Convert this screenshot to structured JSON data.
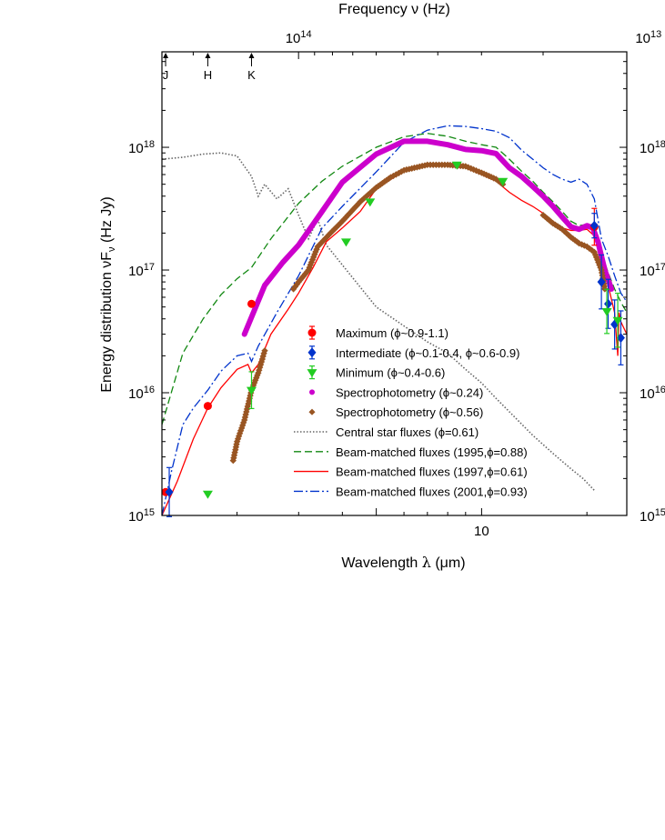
{
  "chart_data": {
    "type": "scatter",
    "title": "",
    "xlabel": "Wavelength λ (μm)",
    "ylabel": "Energy distribution νF_ν (Hz Jy)",
    "top_xlabel": "Frequency ν (Hz)",
    "x_scale": "log",
    "y_scale": "log",
    "xlim": [
      1.22,
      26.0
    ],
    "ylim": [
      1000000000000000.0,
      6e+18
    ],
    "x_ticks": [
      {
        "value": 10,
        "label": "10"
      }
    ],
    "y_ticks": [
      {
        "value": 1000000000000000.0,
        "base": "10",
        "exp": "15"
      },
      {
        "value": 1e+16,
        "base": "10",
        "exp": "16"
      },
      {
        "value": 1e+17,
        "base": "10",
        "exp": "17"
      },
      {
        "value": 1e+18,
        "base": "10",
        "exp": "18"
      }
    ],
    "top_ticks": [
      {
        "value_um": 2.998,
        "base": "10",
        "exp": "14"
      },
      {
        "value_um": 29.98,
        "base": "10",
        "exp": "13"
      }
    ],
    "bands": [
      {
        "label": "J",
        "x": 1.25
      },
      {
        "label": "H",
        "x": 1.65
      },
      {
        "label": "K",
        "x": 2.2
      }
    ],
    "legend_position": "center-right",
    "series": [
      {
        "name": "Maximum (ϕ~0.9-1.1)",
        "kind": "points",
        "marker": "circle",
        "color": "#ff0000",
        "points": [
          [
            1.25,
            1550000000000000.0
          ],
          [
            1.65,
            7800000000000000.0
          ],
          [
            2.2,
            5.3e+16
          ],
          [
            21.0,
            2.25e+17
          ]
        ],
        "errors": [
          0,
          0,
          0,
          0.15
        ]
      },
      {
        "name": "Intermediate (ϕ~0.1-0.4, ϕ~0.6-0.9)",
        "kind": "points",
        "marker": "diamond",
        "color": "#0033cc",
        "points": [
          [
            1.28,
            1550000000000000.0
          ],
          [
            21.0,
            2.3e+17
          ],
          [
            22.0,
            8e+16
          ],
          [
            23.0,
            5.3e+16
          ],
          [
            24.0,
            3.6e+16
          ],
          [
            25.0,
            2.8e+16
          ]
        ],
        "errors": [
          0.2,
          0.1,
          0.22,
          0.2,
          0.2,
          0.22
        ]
      },
      {
        "name": "Minimum (ϕ~0.4-0.6)",
        "kind": "points",
        "marker": "triangle-down",
        "color": "#22cc22",
        "points": [
          [
            1.65,
            1500000000000000.0
          ],
          [
            2.2,
            1.05e+16
          ],
          [
            4.1,
            1.7e+17
          ],
          [
            4.8,
            3.6e+17
          ],
          [
            8.5,
            7.2e+17
          ],
          [
            11.5,
            5.3e+17
          ],
          [
            22.8,
            4.6e+16
          ],
          [
            24.5,
            3.9e+16
          ]
        ],
        "errors": [
          0,
          0.15,
          0,
          0,
          0,
          0,
          0.18,
          0.22
        ]
      },
      {
        "name": "Spectrophotometry (ϕ~0.24)",
        "kind": "dotline",
        "color": "#cc00cc",
        "points": [
          [
            2.1,
            3e+16
          ],
          [
            2.4,
            7.5e+16
          ],
          [
            2.7,
            1.15e+17
          ],
          [
            3.0,
            1.6e+17
          ],
          [
            3.5,
            3e+17
          ],
          [
            4.0,
            5.2e+17
          ],
          [
            5.0,
            8.8e+17
          ],
          [
            6.0,
            1.12e+18
          ],
          [
            7.0,
            1.12e+18
          ],
          [
            8.0,
            1.05e+18
          ],
          [
            9.0,
            9.6e+17
          ],
          [
            10.0,
            9.4e+17
          ],
          [
            11.0,
            8.9e+17
          ],
          [
            12.0,
            6.8e+17
          ],
          [
            13.0,
            5.8e+17
          ],
          [
            14.0,
            4.8e+17
          ],
          [
            15.0,
            4e+17
          ],
          [
            16.0,
            3.3e+17
          ],
          [
            17.0,
            2.7e+17
          ],
          [
            18.0,
            2.25e+17
          ],
          [
            19.0,
            2.15e+17
          ],
          [
            20.0,
            2.3e+17
          ],
          [
            20.8,
            2.2e+17
          ],
          [
            21.5,
            1.7e+17
          ],
          [
            22.5,
            1e+17
          ],
          [
            23.5,
            7e+16
          ]
        ]
      },
      {
        "name": "Spectrophotometry (ϕ~0.56)",
        "kind": "dotline",
        "color": "#995522",
        "points": [
          [
            1.95,
            2800000000000000.0
          ],
          [
            2.0,
            4000000000000000.0
          ],
          [
            2.1,
            6000000000000000.0
          ],
          [
            2.2,
            1.05e+16
          ],
          [
            2.3,
            1.45e+16
          ],
          [
            2.4,
            2.2e+16
          ]
        ],
        "points2": [
          [
            2.9,
            7e+16
          ],
          [
            3.0,
            8e+16
          ],
          [
            3.2,
            1e+17
          ],
          [
            3.4,
            1.55e+17
          ],
          [
            3.7,
            2e+17
          ],
          [
            4.0,
            2.5e+17
          ],
          [
            4.5,
            3.6e+17
          ],
          [
            5.0,
            4.7e+17
          ],
          [
            5.5,
            5.7e+17
          ],
          [
            6.0,
            6.5e+17
          ],
          [
            7.0,
            7.2e+17
          ],
          [
            8.0,
            7.2e+17
          ],
          [
            9.0,
            7e+17
          ],
          [
            10.0,
            6.2e+17
          ],
          [
            11.0,
            5.5e+17
          ],
          [
            11.5,
            5e+17
          ]
        ],
        "points3": [
          [
            15.0,
            2.8e+17
          ],
          [
            16.0,
            2.4e+17
          ],
          [
            17.0,
            2.15e+17
          ],
          [
            18.0,
            1.85e+17
          ],
          [
            19.0,
            1.65e+17
          ],
          [
            20.0,
            1.55e+17
          ],
          [
            21.0,
            1.4e+17
          ],
          [
            22.0,
            1e+17
          ],
          [
            22.5,
            7e+16
          ]
        ]
      },
      {
        "name": "Central star fluxes (ϕ=0.61)",
        "kind": "line",
        "dash": "dotted",
        "color": "#666666",
        "points": [
          [
            1.22,
            8e+17
          ],
          [
            1.4,
            8.3e+17
          ],
          [
            1.6,
            8.8e+17
          ],
          [
            1.8,
            9e+17
          ],
          [
            2.0,
            8.5e+17
          ],
          [
            2.2,
            5.8e+17
          ],
          [
            2.3,
            4e+17
          ],
          [
            2.4,
            5e+17
          ],
          [
            2.6,
            3.8e+17
          ],
          [
            2.8,
            4.6e+17
          ],
          [
            3.0,
            2.8e+17
          ],
          [
            3.2,
            1.8e+17
          ],
          [
            3.4,
            2.6e+17
          ],
          [
            3.6,
            1.6e+17
          ],
          [
            4.0,
            1.1e+17
          ],
          [
            5.0,
            5e+16
          ],
          [
            6.0,
            3.5e+16
          ],
          [
            7.0,
            2.6e+16
          ],
          [
            8.0,
            2.1e+16
          ],
          [
            9.0,
            1.55e+16
          ],
          [
            10.0,
            1.2e+16
          ],
          [
            11.0,
            9000000000000000.0
          ],
          [
            12.0,
            7000000000000000.0
          ],
          [
            14.0,
            4500000000000000.0
          ],
          [
            16.0,
            3200000000000000.0
          ],
          [
            18.0,
            2400000000000000.0
          ],
          [
            19.5,
            2000000000000000.0
          ],
          [
            21.0,
            1600000000000000.0
          ]
        ]
      },
      {
        "name": "Beam-matched fluxes (1995,ϕ=0.88)",
        "kind": "line",
        "dash": "dash",
        "color": "#118811",
        "points": [
          [
            1.22,
            5500000000000000.0
          ],
          [
            1.4,
            2.1e+16
          ],
          [
            1.6,
            4e+16
          ],
          [
            1.8,
            6.3e+16
          ],
          [
            2.0,
            8.5e+16
          ],
          [
            2.2,
            1.05e+17
          ],
          [
            2.5,
            1.8e+17
          ],
          [
            3.0,
            3.5e+17
          ],
          [
            3.5,
            5.3e+17
          ],
          [
            4.0,
            7e+17
          ],
          [
            5.0,
            1e+18
          ],
          [
            6.0,
            1.22e+18
          ],
          [
            7.0,
            1.3e+18
          ],
          [
            8.0,
            1.23e+18
          ],
          [
            9.0,
            1.12e+18
          ],
          [
            10.0,
            1.05e+18
          ],
          [
            11.0,
            1e+18
          ],
          [
            12.0,
            8e+17
          ],
          [
            13.0,
            6.4e+17
          ],
          [
            14.0,
            5.3e+17
          ],
          [
            15.0,
            4.3e+17
          ],
          [
            16.0,
            3.6e+17
          ],
          [
            17.0,
            3e+17
          ],
          [
            18.0,
            2.5e+17
          ],
          [
            19.0,
            2.3e+17
          ],
          [
            20.0,
            2.35e+17
          ],
          [
            21.0,
            2.3e+17
          ],
          [
            22.0,
            1.4e+17
          ],
          [
            23.0,
            9.5e+16
          ],
          [
            24.0,
            7e+16
          ],
          [
            25.0,
            5.5e+16
          ],
          [
            26.0,
            4.5e+16
          ]
        ]
      },
      {
        "name": "Beam-matched fluxes (1997,ϕ=0.61)",
        "kind": "line",
        "dash": "solid",
        "color": "#ff0000",
        "points": [
          [
            1.22,
            1000000000000000.0
          ],
          [
            1.35,
            1900000000000000.0
          ],
          [
            1.5,
            4200000000000000.0
          ],
          [
            1.65,
            7500000000000000.0
          ],
          [
            1.8,
            1.1e+16
          ],
          [
            2.0,
            1.55e+16
          ],
          [
            2.15,
            1.7e+16
          ],
          [
            2.2,
            1.45e+16
          ],
          [
            2.3,
            1.7e+16
          ],
          [
            2.5,
            3e+16
          ],
          [
            2.8,
            4.8e+16
          ],
          [
            3.0,
            6.5e+16
          ],
          [
            3.3,
            1.05e+17
          ],
          [
            3.6,
            1.7e+17
          ],
          [
            4.0,
            2.2e+17
          ],
          [
            4.5,
            3e+17
          ],
          [
            5.0,
            4.6e+17
          ],
          [
            6.0,
            6.4e+17
          ],
          [
            7.0,
            7.1e+17
          ],
          [
            8.0,
            7.2e+17
          ],
          [
            9.0,
            6.8e+17
          ],
          [
            10.0,
            6e+17
          ],
          [
            11.0,
            5.3e+17
          ],
          [
            12.0,
            4.3e+17
          ],
          [
            13.0,
            3.7e+17
          ],
          [
            14.0,
            3.3e+17
          ],
          [
            15.0,
            2.9e+17
          ],
          [
            16.0,
            2.5e+17
          ],
          [
            17.0,
            2.2e+17
          ],
          [
            18.0,
            2.1e+17
          ],
          [
            19.0,
            2.1e+17
          ],
          [
            20.0,
            2.15e+17
          ],
          [
            21.0,
            1.9e+17
          ],
          [
            22.0,
            1.2e+17
          ],
          [
            23.0,
            7.5e+16
          ],
          [
            24.0,
            4.5e+16
          ],
          [
            24.5,
            2e+16
          ],
          [
            24.7,
            4.5e+16
          ],
          [
            25.0,
            3.8e+16
          ],
          [
            26.0,
            3e+16
          ]
        ]
      },
      {
        "name": "Beam-matched fluxes (2001,ϕ=0.93)",
        "kind": "line",
        "dash": "dashdot",
        "color": "#0033cc",
        "points": [
          [
            1.22,
            1000000000000000.0
          ],
          [
            1.3,
            2300000000000000.0
          ],
          [
            1.4,
            5500000000000000.0
          ],
          [
            1.5,
            7500000000000000.0
          ],
          [
            1.65,
            1.05e+16
          ],
          [
            1.8,
            1.5e+16
          ],
          [
            2.0,
            2e+16
          ],
          [
            2.15,
            2.1e+16
          ],
          [
            2.2,
            1.8e+16
          ],
          [
            2.3,
            2.4e+16
          ],
          [
            2.6,
            4.5e+16
          ],
          [
            3.0,
            9e+16
          ],
          [
            3.5,
            2.2e+17
          ],
          [
            4.0,
            3.3e+17
          ],
          [
            5.0,
            6.3e+17
          ],
          [
            6.0,
            1.1e+18
          ],
          [
            7.0,
            1.38e+18
          ],
          [
            8.0,
            1.5e+18
          ],
          [
            9.0,
            1.48e+18
          ],
          [
            10.0,
            1.42e+18
          ],
          [
            11.0,
            1.35e+18
          ],
          [
            12.0,
            1.2e+18
          ],
          [
            13.0,
            9.5e+17
          ],
          [
            14.0,
            8e+17
          ],
          [
            15.0,
            6.8e+17
          ],
          [
            16.0,
            6e+17
          ],
          [
            17.0,
            5.5e+17
          ],
          [
            18.0,
            5.2e+17
          ],
          [
            19.0,
            5.5e+17
          ],
          [
            20.0,
            5e+17
          ],
          [
            21.0,
            3.8e+17
          ],
          [
            22.0,
            1.8e+17
          ],
          [
            23.0,
            1.3e+17
          ],
          [
            24.0,
            9e+16
          ],
          [
            25.0,
            6.5e+16
          ],
          [
            26.0,
            5.5e+16
          ]
        ]
      }
    ]
  }
}
